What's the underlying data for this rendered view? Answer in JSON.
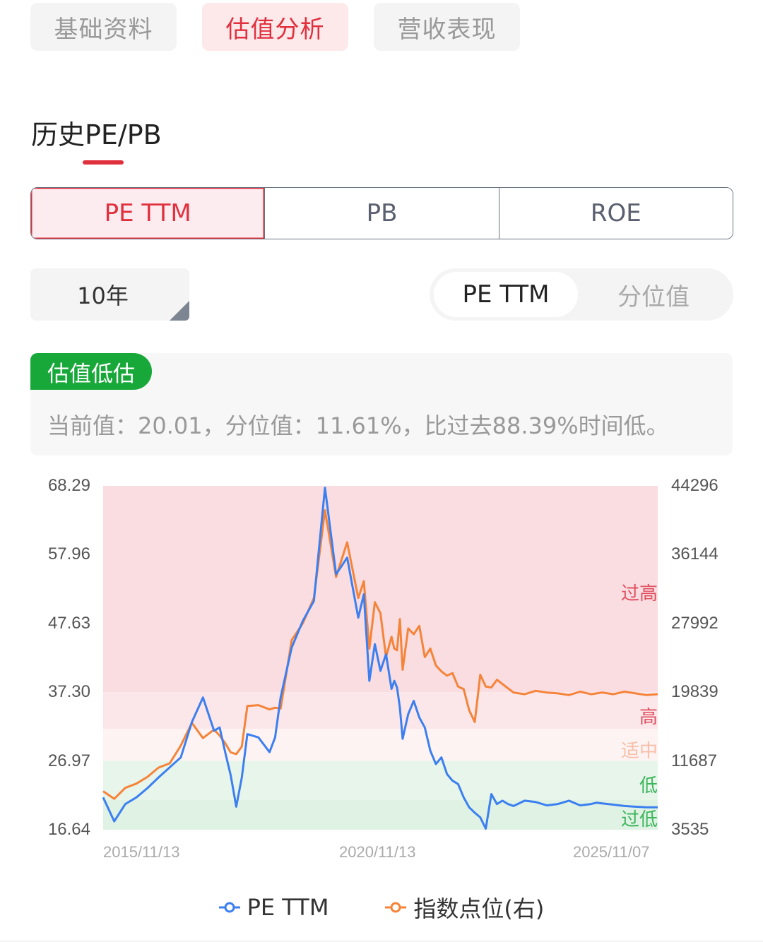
{
  "top_tabs": [
    {
      "label": "基础资料",
      "active": false
    },
    {
      "label": "估值分析",
      "active": true
    },
    {
      "label": "营收表现",
      "active": false
    }
  ],
  "section_title": "历史PE/PB",
  "metric_tabs": [
    {
      "label": "PE TTM",
      "active": true
    },
    {
      "label": "PB",
      "active": false
    },
    {
      "label": "ROE",
      "active": false
    }
  ],
  "period": {
    "selected": "10年"
  },
  "view_toggle": [
    {
      "label": "PE TTM",
      "active": true
    },
    {
      "label": "分位值",
      "active": false
    }
  ],
  "status": {
    "badge": "估值低估",
    "badge_color": "#18a83a",
    "summary": "当前值：20.01，分位值：11.61%，比过去88.39%时间低。",
    "current_value": "20.01",
    "percentile": "11.61%",
    "lower_than_pct": "88.39%"
  },
  "colors": {
    "accent": "#e0303e",
    "pe_line": "#3b7ff0",
    "index_line": "#f5843a",
    "band_very_high": "#f9dde1",
    "band_high": "#fbe7ea",
    "band_mid": "#fdf3f3",
    "band_low": "#e7f5ea",
    "band_very_low": "#dff2e4"
  },
  "chart_data": {
    "type": "line",
    "title": "",
    "xlabel": "",
    "ylabel": "PE TTM",
    "ylabel_right": "指数点位(右)",
    "x_ticks": [
      "2015/11/13",
      "2020/11/13",
      "2025/11/07"
    ],
    "x_range": [
      "2015/11/13",
      "2025/11/07"
    ],
    "y_ticks_left": [
      "68.29",
      "57.96",
      "47.63",
      "37.30",
      "26.97",
      "16.64"
    ],
    "y_ticks_right": [
      "44296",
      "36144",
      "27992",
      "19839",
      "11687",
      "3535"
    ],
    "ylim_left": [
      16.64,
      68.29
    ],
    "ylim_right": [
      3535,
      44296
    ],
    "grid": false,
    "legend_position": "bottom",
    "legend": [
      "PE TTM",
      "指数点位(右)"
    ],
    "bands": [
      {
        "label": "过高",
        "from": 37.3,
        "to": 68.29,
        "label_color": "#e05060"
      },
      {
        "label": "高",
        "from": 31.8,
        "to": 37.3,
        "label_color": "#e05060"
      },
      {
        "label": "适中",
        "from": 26.97,
        "to": 31.8,
        "label_color": "#f7bfa8"
      },
      {
        "label": "低",
        "from": 21.1,
        "to": 26.97,
        "label_color": "#3cb55a"
      },
      {
        "label": "过低",
        "from": 16.64,
        "to": 21.1,
        "label_color": "#3cb55a"
      }
    ],
    "x": [
      0,
      0.02,
      0.04,
      0.06,
      0.08,
      0.1,
      0.12,
      0.14,
      0.16,
      0.18,
      0.2,
      0.21,
      0.22,
      0.23,
      0.24,
      0.25,
      0.26,
      0.28,
      0.3,
      0.31,
      0.32,
      0.34,
      0.36,
      0.38,
      0.4,
      0.42,
      0.44,
      0.46,
      0.47,
      0.48,
      0.49,
      0.5,
      0.51,
      0.52,
      0.525,
      0.53,
      0.535,
      0.54,
      0.55,
      0.56,
      0.57,
      0.58,
      0.59,
      0.6,
      0.61,
      0.62,
      0.63,
      0.64,
      0.65,
      0.66,
      0.67,
      0.68,
      0.69,
      0.7,
      0.71,
      0.72,
      0.73,
      0.74,
      0.76,
      0.78,
      0.8,
      0.82,
      0.84,
      0.86,
      0.88,
      0.89,
      0.9,
      0.92,
      0.94,
      0.96,
      0.98,
      1.0
    ],
    "series": [
      {
        "name": "PE TTM",
        "values": [
          21.5,
          17.9,
          20.5,
          21.5,
          22.9,
          24.5,
          26.0,
          27.5,
          32.8,
          36.5,
          31.5,
          32.0,
          28.3,
          24.8,
          20.1,
          24.5,
          31.0,
          30.5,
          28.3,
          30.5,
          36.5,
          44.0,
          48.0,
          51.0,
          68.0,
          55.0,
          57.5,
          48.5,
          52.0,
          39.0,
          44.5,
          40.5,
          43.0,
          37.8,
          39.0,
          38.0,
          35.0,
          30.3,
          34.0,
          36.0,
          33.5,
          32.0,
          28.5,
          26.5,
          27.5,
          25.0,
          24.0,
          23.5,
          21.5,
          20.0,
          19.2,
          18.5,
          16.8,
          22.0,
          20.5,
          21.0,
          20.5,
          20.2,
          21.0,
          20.8,
          20.3,
          20.5,
          21.0,
          20.3,
          20.5,
          20.7,
          20.6,
          20.4,
          20.2,
          20.1,
          20.0,
          20.01
        ]
      },
      {
        "name": "指数点位(右)",
        "values": [
          8100,
          7200,
          8500,
          9000,
          9800,
          10900,
          11400,
          13500,
          16200,
          14400,
          15400,
          14700,
          13800,
          12700,
          12500,
          13400,
          18200,
          18300,
          17800,
          18000,
          17900,
          26000,
          28000,
          31000,
          41400,
          33500,
          37600,
          31000,
          33000,
          25000,
          30500,
          29200,
          24000,
          26400,
          25000,
          24800,
          28500,
          22500,
          27400,
          26700,
          27700,
          24000,
          25000,
          23000,
          22300,
          21800,
          22100,
          20500,
          20200,
          17700,
          16300,
          21900,
          20500,
          20400,
          21300,
          20800,
          20300,
          19800,
          19600,
          20000,
          19800,
          19700,
          19500,
          19900,
          19600,
          19700,
          19800,
          19600,
          19900,
          19700,
          19500,
          19600
        ]
      }
    ]
  }
}
